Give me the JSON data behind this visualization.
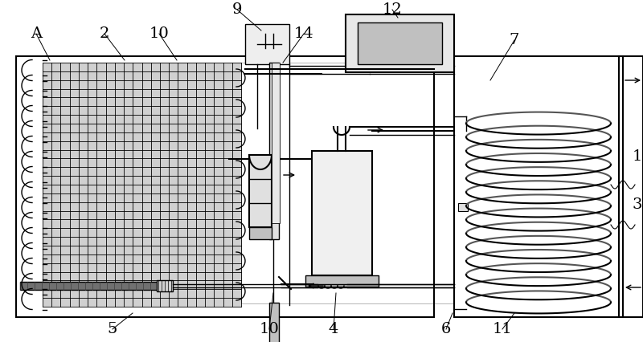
{
  "bg_color": "#ffffff",
  "lc": "#000000",
  "gray1": "#c8c8c8",
  "gray2": "#a0a0a0",
  "gray3": "#606060",
  "fig_w": 8.0,
  "fig_h": 4.26,
  "dpi": 100
}
